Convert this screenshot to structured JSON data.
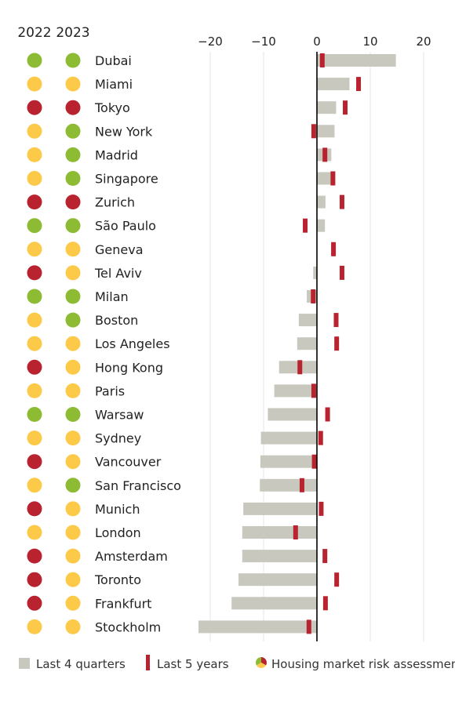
{
  "chart_data": {
    "type": "bar",
    "year_headers": [
      "2022",
      "2023"
    ],
    "x_ticks": [
      -20,
      -10,
      0,
      10,
      20
    ],
    "x_tick_labels": [
      "−20",
      "−10",
      "0",
      "10",
      "20"
    ],
    "xlim": [
      -22,
      22
    ],
    "grid": "vertical lines at ticks",
    "risk_colors": {
      "green": "#8dbb33",
      "yellow": "#fcca48",
      "red": "#b8232f"
    },
    "series_colors": {
      "last_4_quarters": "#c8c8be",
      "last_5_years": "#b8232f",
      "zero_line": "#000000"
    },
    "categories": [
      "Dubai",
      "Miami",
      "Tokyo",
      "New York",
      "Madrid",
      "Singapore",
      "Zurich",
      "São Paulo",
      "Geneva",
      "Tel Aviv",
      "Milan",
      "Boston",
      "Los Angeles",
      "Hong Kong",
      "Paris",
      "Warsaw",
      "Sydney",
      "Vancouver",
      "San Francisco",
      "Munich",
      "London",
      "Amsterdam",
      "Toronto",
      "Frankfurt",
      "Stockholm"
    ],
    "risk_2022": [
      "green",
      "yellow",
      "red",
      "yellow",
      "yellow",
      "yellow",
      "red",
      "green",
      "yellow",
      "red",
      "green",
      "yellow",
      "yellow",
      "red",
      "yellow",
      "green",
      "yellow",
      "red",
      "yellow",
      "red",
      "yellow",
      "red",
      "red",
      "red",
      "yellow"
    ],
    "risk_2023": [
      "green",
      "yellow",
      "red",
      "green",
      "green",
      "green",
      "red",
      "green",
      "yellow",
      "yellow",
      "green",
      "green",
      "yellow",
      "yellow",
      "yellow",
      "green",
      "yellow",
      "yellow",
      "green",
      "yellow",
      "yellow",
      "yellow",
      "yellow",
      "yellow",
      "yellow"
    ],
    "series": [
      {
        "name": "Last 4 quarters",
        "values": [
          14.8,
          6.1,
          3.6,
          3.3,
          2.7,
          2.6,
          1.6,
          1.5,
          0,
          -0.7,
          -1.9,
          -3.4,
          -3.7,
          -7.1,
          -8.0,
          -9.2,
          -10.5,
          -10.6,
          -10.7,
          -13.8,
          -14.0,
          -14.0,
          -14.7,
          -16.0,
          -22.2
        ]
      },
      {
        "name": "Last 5 years",
        "values": [
          1.0,
          7.8,
          5.3,
          -0.6,
          1.5,
          3.0,
          4.7,
          -2.2,
          3.1,
          4.7,
          -0.7,
          3.6,
          3.7,
          -3.2,
          -0.6,
          2.0,
          0.7,
          -0.5,
          -2.8,
          0.8,
          -4.0,
          1.5,
          3.7,
          1.6,
          -1.5
        ]
      }
    ]
  },
  "legend": {
    "last_4_quarters": "Last 4 quarters",
    "last_5_years": "Last 5 years",
    "risk": "Housing market risk assessment"
  }
}
